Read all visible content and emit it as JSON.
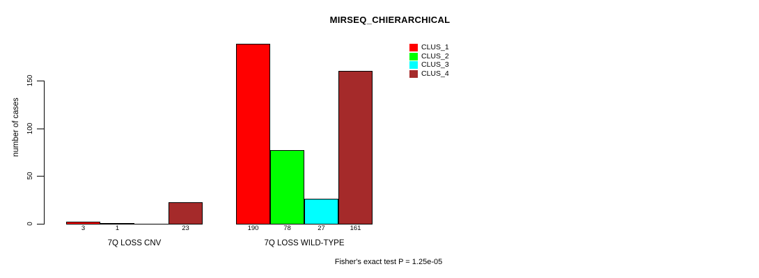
{
  "chart_data": {
    "type": "bar",
    "title": "MIRSEQ_CHIERARCHICAL",
    "xlabel": "",
    "ylabel": "number of cases",
    "ylim": [
      0,
      200
    ],
    "yticks": [
      0,
      50,
      100,
      150
    ],
    "grid": false,
    "legend_position": "top-right",
    "footnote": "Fisher's exact test P = 1.25e-05",
    "series": [
      {
        "name": "CLUS_1",
        "color": "#ff0000"
      },
      {
        "name": "CLUS_2",
        "color": "#00ff00"
      },
      {
        "name": "CLUS_3",
        "color": "#00ffff"
      },
      {
        "name": "CLUS_4",
        "color": "#a52a2a"
      }
    ],
    "groups": [
      {
        "label": "7Q LOSS CNV",
        "values": [
          3,
          1,
          0,
          23
        ],
        "bar_labels": [
          "3",
          "1",
          "",
          "23"
        ]
      },
      {
        "label": "7Q LOSS WILD-TYPE",
        "values": [
          190,
          78,
          27,
          161
        ],
        "bar_labels": [
          "190",
          "78",
          "27",
          "161"
        ]
      }
    ]
  }
}
